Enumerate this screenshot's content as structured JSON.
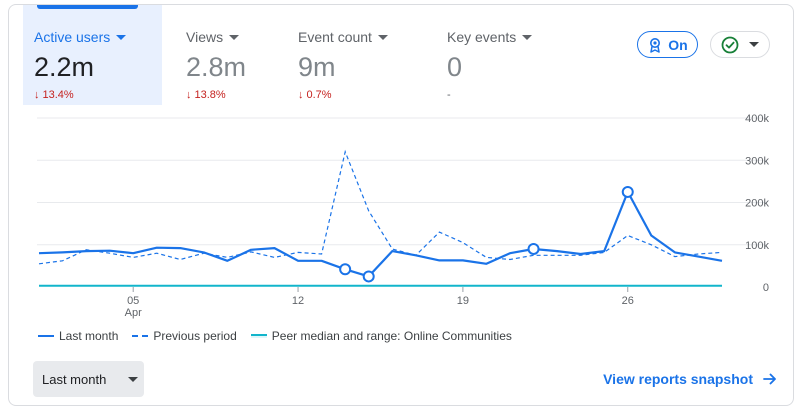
{
  "metrics": [
    {
      "label": "Active users",
      "value": "2.2m",
      "delta": "13.4%",
      "direction": "down"
    },
    {
      "label": "Views",
      "value": "2.8m",
      "delta": "13.8%",
      "direction": "down"
    },
    {
      "label": "Event count",
      "value": "9m",
      "delta": "0.7%",
      "direction": "down"
    },
    {
      "label": "Key events",
      "value": "0",
      "delta": "-",
      "direction": "none"
    }
  ],
  "controls": {
    "badge_label": "On",
    "badge_icon": "award-icon",
    "status_icon": "check-circle-icon"
  },
  "colors": {
    "accent": "#1a73e8",
    "negative": "#c5221f",
    "peer": "#12b5cb"
  },
  "chart_data": {
    "type": "line",
    "x": [
      1,
      2,
      3,
      4,
      5,
      6,
      7,
      8,
      9,
      10,
      11,
      12,
      13,
      14,
      15,
      16,
      17,
      18,
      19,
      20,
      21,
      22,
      23,
      24,
      25,
      26,
      27,
      28,
      29,
      30
    ],
    "x_tick_labels": [
      {
        "x": 5,
        "label": "05",
        "sub": "Apr"
      },
      {
        "x": 12,
        "label": "12",
        "sub": ""
      },
      {
        "x": 19,
        "label": "19",
        "sub": ""
      },
      {
        "x": 26,
        "label": "26",
        "sub": ""
      }
    ],
    "y_ticks": [
      "0",
      "100k",
      "200k",
      "300k",
      "400k"
    ],
    "ylim": [
      0,
      400000
    ],
    "series": [
      {
        "name": "Last month",
        "style": "solid",
        "values": [
          80000,
          82000,
          85000,
          86000,
          80000,
          93000,
          92000,
          82000,
          62000,
          88000,
          92000,
          62000,
          62000,
          42000,
          25000,
          85000,
          75000,
          63000,
          63000,
          55000,
          80000,
          90000,
          85000,
          78000,
          85000,
          225000,
          122000,
          82000,
          72000,
          62000
        ],
        "markers": [
          14,
          15,
          22,
          26
        ]
      },
      {
        "name": "Previous period",
        "style": "dashed",
        "values": [
          55000,
          62000,
          88000,
          80000,
          70000,
          80000,
          65000,
          80000,
          70000,
          83000,
          70000,
          82000,
          78000,
          320000,
          180000,
          90000,
          75000,
          130000,
          105000,
          70000,
          65000,
          75000,
          75000,
          75000,
          82000,
          122000,
          100000,
          72000,
          78000,
          82000
        ]
      },
      {
        "name": "Peer median and range: Online Communities",
        "style": "peer",
        "values": [
          3000,
          3000,
          3000,
          3000,
          3000,
          3000,
          3000,
          3000,
          3000,
          3000,
          3000,
          3000,
          3000,
          3000,
          3000,
          3000,
          3000,
          3000,
          3000,
          3000,
          3000,
          3000,
          3000,
          3000,
          3000,
          3000,
          3000,
          3000,
          3000,
          3000
        ]
      }
    ],
    "grid": true
  },
  "legend": [
    {
      "label": "Last month",
      "style": "solid"
    },
    {
      "label": "Previous period",
      "style": "dashed"
    },
    {
      "label": "Peer median and range: Online Communities",
      "style": "peer"
    }
  ],
  "footer": {
    "period_label": "Last month",
    "link_label": "View reports snapshot"
  }
}
